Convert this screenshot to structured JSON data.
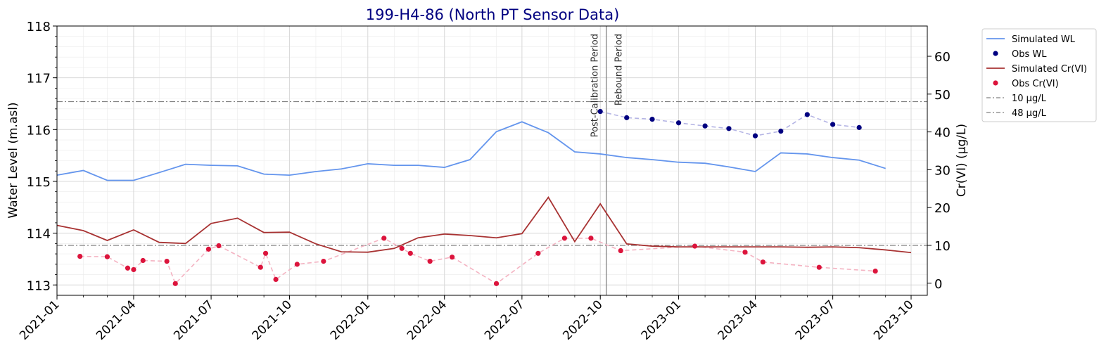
{
  "chart_data": {
    "type": "line",
    "title": "199-H4-86 (North PT Sensor Data)",
    "ylabel_left": "Water Level (m.asl)",
    "ylabel_right": "Cr(VI) (µg/L)",
    "xlim": [
      "2021-01-01",
      "2023-10-20"
    ],
    "ylim_left": [
      112.8,
      118
    ],
    "ylim_right": [
      -3.2,
      68
    ],
    "x_ticks": [
      "2021-01",
      "2021-04",
      "2021-07",
      "2021-10",
      "2022-01",
      "2022-04",
      "2022-07",
      "2022-10",
      "2023-01",
      "2023-04",
      "2023-07",
      "2023-10"
    ],
    "y_ticks_left": [
      "113",
      "114",
      "115",
      "116",
      "117",
      "118"
    ],
    "y_ticks_right": [
      "0",
      "10",
      "20",
      "30",
      "40",
      "50",
      "60"
    ],
    "series": [
      {
        "name": "Simulated WL",
        "axis": "left",
        "kind": "line",
        "color": "#6495ed",
        "x": [
          "2021-01-01",
          "2021-02-01",
          "2021-03-01",
          "2021-04-01",
          "2021-05-01",
          "2021-06-01",
          "2021-07-01",
          "2021-08-01",
          "2021-09-01",
          "2021-10-01",
          "2021-11-01",
          "2021-12-01",
          "2022-01-01",
          "2022-02-01",
          "2022-03-01",
          "2022-04-01",
          "2022-05-01",
          "2022-06-01",
          "2022-07-01",
          "2022-08-01",
          "2022-09-01",
          "2022-10-01",
          "2022-11-01",
          "2022-12-01",
          "2023-01-01",
          "2023-02-01",
          "2023-03-01",
          "2023-04-01",
          "2023-05-01",
          "2023-06-01",
          "2023-07-01",
          "2023-08-01",
          "2023-09-01"
        ],
        "y": [
          115.12,
          115.21,
          115.02,
          115.02,
          115.17,
          115.33,
          115.31,
          115.3,
          115.14,
          115.12,
          115.19,
          115.24,
          115.34,
          115.31,
          115.31,
          115.27,
          115.42,
          115.96,
          116.15,
          115.94,
          115.57,
          115.53,
          115.46,
          115.42,
          115.37,
          115.35,
          115.28,
          115.19,
          115.55,
          115.53,
          115.46,
          115.41,
          115.25
        ]
      },
      {
        "name": "Obs WL",
        "axis": "left",
        "kind": "scatter",
        "color": "#000080",
        "connector_color": "#b4b4e4",
        "x": [
          "2022-10-01",
          "2022-11-01",
          "2022-12-01",
          "2023-01-01",
          "2023-02-01",
          "2023-03-01",
          "2023-04-01",
          "2023-05-01",
          "2023-06-01",
          "2023-07-01",
          "2023-08-01"
        ],
        "y": [
          116.35,
          116.23,
          116.2,
          116.13,
          116.07,
          116.02,
          115.88,
          115.97,
          116.29,
          116.1,
          116.04
        ]
      },
      {
        "name": "Simulated Cr(VI)",
        "axis": "right",
        "kind": "line",
        "color": "#a83232",
        "x": [
          "2021-01-01",
          "2021-02-01",
          "2021-03-01",
          "2021-04-01",
          "2021-05-01",
          "2021-06-01",
          "2021-07-01",
          "2021-08-01",
          "2021-09-01",
          "2021-10-01",
          "2021-11-01",
          "2021-12-01",
          "2022-01-01",
          "2022-02-01",
          "2022-03-01",
          "2022-04-01",
          "2022-05-01",
          "2022-06-01",
          "2022-07-01",
          "2022-08-01",
          "2022-09-01",
          "2022-10-01",
          "2022-11-01",
          "2022-12-01",
          "2023-01-01",
          "2023-02-01",
          "2023-03-01",
          "2023-04-01",
          "2023-05-01",
          "2023-06-01",
          "2023-07-01",
          "2023-08-01",
          "2023-09-01",
          "2023-10-01"
        ],
        "y": [
          15.3,
          13.9,
          11.3,
          14.1,
          10.8,
          10.5,
          15.8,
          17.2,
          13.4,
          13.5,
          10.4,
          8.3,
          8.2,
          9.2,
          12.0,
          13.0,
          12.6,
          12.0,
          13.1,
          22.7,
          11.0,
          21.0,
          10.4,
          9.8,
          9.6,
          9.6,
          9.6,
          9.6,
          9.6,
          9.5,
          9.6,
          9.4,
          8.8,
          8.1
        ]
      },
      {
        "name": "Obs Cr(VI)",
        "axis": "right",
        "kind": "scatter",
        "color": "#dc143c",
        "connector_color": "#f4b3c2",
        "x": [
          "2021-01-28",
          "2021-03-01",
          "2021-03-25",
          "2021-04-01",
          "2021-04-12",
          "2021-05-10",
          "2021-05-20",
          "2021-06-28",
          "2021-07-10",
          "2021-08-28",
          "2021-09-03",
          "2021-09-15",
          "2021-10-10",
          "2021-11-10",
          "2022-01-20",
          "2022-02-10",
          "2022-02-20",
          "2022-03-15",
          "2022-04-10",
          "2022-06-01",
          "2022-07-20",
          "2022-08-20",
          "2022-09-20",
          "2022-10-25",
          "2023-01-20",
          "2023-03-20",
          "2023-04-10",
          "2023-06-15",
          "2023-08-20"
        ],
        "y": [
          7.1,
          7.0,
          4.0,
          3.6,
          6.0,
          5.8,
          -0.1,
          9.0,
          9.9,
          4.2,
          7.9,
          1.0,
          5.0,
          5.8,
          11.9,
          9.2,
          7.9,
          5.8,
          6.9,
          -0.1,
          7.9,
          11.9,
          11.9,
          8.6,
          9.8,
          8.2,
          5.6,
          4.2,
          3.2
        ]
      }
    ],
    "reference_lines": [
      {
        "label": "10 µg/L",
        "axis": "right",
        "value": 10,
        "color": "#808080"
      },
      {
        "label": "48 µg/L",
        "axis": "right",
        "value": 48,
        "color": "#808080"
      }
    ],
    "vertical_line": {
      "x": "2022-10-08",
      "color": "#808080",
      "left_label": "Post-Calibration Period",
      "right_label": "Rebound Period"
    },
    "legend_location": "upper-right-outside"
  }
}
